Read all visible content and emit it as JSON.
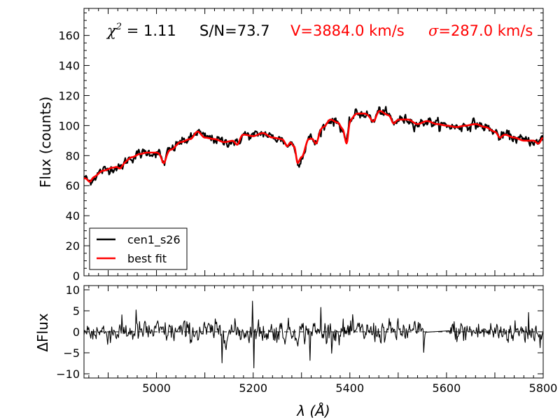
{
  "chart_data": [
    {
      "type": "line",
      "panel": "top",
      "ylabel": "Flux (counts)",
      "xlim": [
        4850,
        5800
      ],
      "ylim": [
        0,
        178
      ],
      "yticks": [
        0,
        20,
        40,
        60,
        80,
        100,
        120,
        140,
        160
      ],
      "annotations": {
        "chi2_symbol": "χ",
        "chi2_sup": "2",
        "chi2_eq": " = ",
        "chi2_value": "1.11",
        "sn": "S/N=73.7",
        "velocity": "V=3884.0 km/s",
        "sigma_symbol": "σ",
        "sigma_value": "=287.0 km/s",
        "annotation_color": "#ff0000"
      },
      "legend": {
        "placement": "lower-left",
        "entries": [
          {
            "label": "cen1_s26",
            "color": "#000000"
          },
          {
            "label": "best fit",
            "color": "#ff0000"
          }
        ]
      },
      "series": [
        {
          "name": "cen1_s26",
          "color": "#000000",
          "noise": 2.6
        },
        {
          "name": "best fit",
          "color": "#ff0000",
          "noise": 0
        }
      ],
      "continuum": {
        "x": [
          4850,
          4870,
          4890,
          4910,
          4930,
          4950,
          4965,
          4980,
          5000,
          5015,
          5030,
          5050,
          5070,
          5085,
          5100,
          5120,
          5140,
          5160,
          5180,
          5200,
          5220,
          5240,
          5260,
          5275,
          5285,
          5292,
          5300,
          5315,
          5330,
          5345,
          5360,
          5375,
          5385,
          5393,
          5400,
          5415,
          5430,
          5445,
          5460,
          5480,
          5500,
          5520,
          5540,
          5560,
          5580,
          5600,
          5620,
          5640,
          5660,
          5680,
          5700,
          5720,
          5740,
          5760,
          5780,
          5790,
          5800
        ],
        "y": [
          65,
          66,
          70,
          72,
          75,
          79,
          81,
          82,
          82,
          80,
          84,
          89,
          91,
          96,
          92,
          91,
          89,
          90,
          94,
          93,
          95,
          92,
          91,
          90,
          86,
          75,
          79,
          91,
          93,
          99,
          104,
          102,
          98,
          93,
          104,
          108,
          108,
          106,
          110,
          107,
          104,
          104,
          101,
          103,
          101,
          100,
          99,
          100,
          101,
          99,
          96,
          94,
          92,
          90,
          90,
          88,
          92
        ]
      },
      "absorption_lines": [
        {
          "center": 4862,
          "depth": 3,
          "width": 4
        },
        {
          "center": 4925,
          "depth": 3,
          "width": 4
        },
        {
          "center": 5015,
          "depth": 5,
          "width": 4
        },
        {
          "center": 5168,
          "depth": 4,
          "width": 4
        },
        {
          "center": 5270,
          "depth": 4,
          "width": 4
        },
        {
          "center": 5330,
          "depth": 5,
          "width": 4
        },
        {
          "center": 5394,
          "depth": 5,
          "width": 4
        },
        {
          "center": 5450,
          "depth": 4,
          "width": 5
        },
        {
          "center": 5490,
          "depth": 4,
          "width": 4
        },
        {
          "center": 5710,
          "depth": 3,
          "width": 4
        }
      ]
    },
    {
      "type": "line",
      "panel": "bottom",
      "xlabel": "λ (Å)",
      "ylabel": "ΔFlux",
      "xlim": [
        4850,
        5800
      ],
      "ylim": [
        -11,
        11
      ],
      "xticks": [
        5000,
        5200,
        5400,
        5600,
        5800
      ],
      "yticks": [
        10,
        5,
        0,
        -5,
        -10
      ],
      "zero_line": {
        "value": 0,
        "style": "dashed",
        "color": "#000000"
      },
      "residual_amplitude": 2.1,
      "masked_region": [
        5558,
        5605
      ],
      "spikes": [
        {
          "x": 5199,
          "y": 7.3
        },
        {
          "x": 5201,
          "y": -8.6
        },
        {
          "x": 5135,
          "y": -7.4
        },
        {
          "x": 5318,
          "y": -6.8
        },
        {
          "x": 5340,
          "y": 5.8
        },
        {
          "x": 5553,
          "y": -4.9
        },
        {
          "x": 4958,
          "y": 5.2
        },
        {
          "x": 5770,
          "y": 4.6
        }
      ]
    }
  ]
}
